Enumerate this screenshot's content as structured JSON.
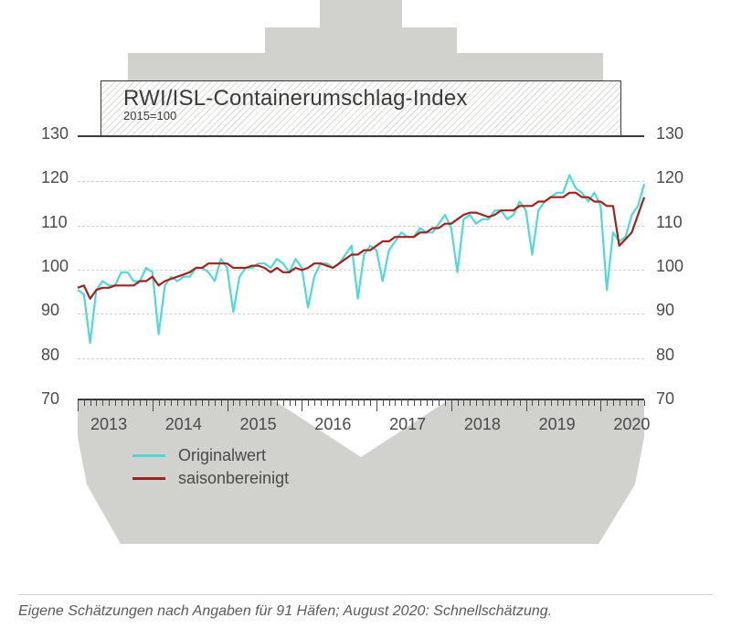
{
  "title": "RWI/ISL-Containerumschlag-Index",
  "subtitle": "2015=100",
  "footnote": "Eigene Schätzungen nach Angaben für 91 Häfen; August 2020: Schnellschätzung.",
  "legend": {
    "original_label": "Originalwert",
    "seasonal_label": "saisonbereinigt"
  },
  "colors": {
    "ship_gray": "#d1d1cd",
    "original": "#4fd9d6",
    "seasonal": "#a1221c",
    "axis": "#3a3a3a",
    "grid": "#cfcfcb",
    "text": "#4a4a4a"
  },
  "chart": {
    "type": "line",
    "ylim": [
      70,
      130
    ],
    "ytick_step": 10,
    "x_years": [
      2013,
      2014,
      2015,
      2016,
      2017,
      2018,
      2019,
      2020
    ],
    "x_start_month": "2013-01",
    "x_end_month": "2020-08",
    "months_per_year": 12,
    "line_width_original": 2.2,
    "line_width_seasonal": 2.2,
    "original": [
      95,
      94,
      83,
      95,
      97,
      96,
      96,
      99,
      99,
      97,
      97,
      100,
      99,
      85,
      96,
      98,
      97,
      98,
      98,
      100,
      100,
      99,
      97,
      102,
      100,
      90,
      98,
      100,
      100,
      101,
      101,
      100,
      102,
      101,
      99,
      102,
      100,
      91,
      98,
      101,
      101,
      100,
      101,
      103,
      105,
      93,
      103,
      105,
      104,
      97,
      104,
      106,
      108,
      107,
      107,
      109,
      108,
      108,
      110,
      112,
      109,
      99,
      111,
      112,
      110,
      111,
      111,
      113,
      113,
      111,
      112,
      115,
      113,
      103,
      113,
      115,
      116,
      117,
      117,
      121,
      118,
      117,
      115,
      117,
      114,
      95,
      108,
      106,
      107,
      112,
      114,
      119
    ],
    "seasonal": [
      95.5,
      96,
      93,
      95,
      95.5,
      95.5,
      96,
      96,
      96,
      96,
      97,
      97,
      98,
      96,
      97,
      97.5,
      98,
      98.5,
      99,
      100,
      100,
      101,
      101,
      101,
      101,
      100,
      100,
      100,
      100.5,
      100.5,
      100,
      99,
      100,
      99,
      99,
      100,
      99.5,
      100,
      101,
      101,
      100.5,
      100,
      101,
      102,
      103,
      103,
      104,
      104,
      105,
      106,
      106,
      107,
      107,
      107,
      107,
      108,
      108,
      109,
      109,
      110,
      110,
      111,
      112,
      112.5,
      112.5,
      112,
      111.5,
      112,
      113,
      113,
      113,
      114,
      114,
      114,
      115,
      115,
      116,
      116,
      116,
      117,
      117,
      116,
      116,
      115,
      115,
      114,
      114,
      105,
      106.5,
      108,
      112,
      116
    ]
  }
}
